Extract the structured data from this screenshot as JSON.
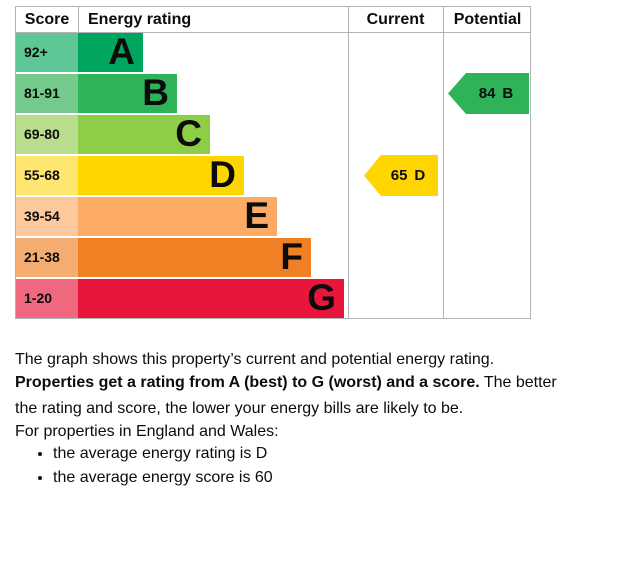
{
  "chart_data": {
    "type": "bar",
    "columns": {
      "score": "Score",
      "rating": "Energy rating",
      "current": "Current",
      "potential": "Potential"
    },
    "bands": [
      {
        "score_range": "92+",
        "letter": "A",
        "color": "#00a65d",
        "score_cell_color": "#5fc795"
      },
      {
        "score_range": "81-91",
        "letter": "B",
        "color": "#2eb358",
        "score_cell_color": "#74ca8c"
      },
      {
        "score_range": "69-80",
        "letter": "C",
        "color": "#8dce46",
        "score_cell_color": "#b8dd8d"
      },
      {
        "score_range": "55-68",
        "letter": "D",
        "color": "#ffd500",
        "score_cell_color": "#ffe671"
      },
      {
        "score_range": "39-54",
        "letter": "E",
        "color": "#fcaa65",
        "score_cell_color": "#fdc89b"
      },
      {
        "score_range": "21-38",
        "letter": "F",
        "color": "#ef8023",
        "score_cell_color": "#f4ac70"
      },
      {
        "score_range": "1-20",
        "letter": "G",
        "color": "#e9153b",
        "score_cell_color": "#f0687f"
      }
    ],
    "current": {
      "score": 65,
      "band": "D",
      "color": "#ffd500"
    },
    "potential": {
      "score": 84,
      "band": "B",
      "color": "#2eb358"
    },
    "grid_color": "#b1b4b6"
  },
  "description": {
    "intro": "The graph shows this property’s current and potential energy rating.",
    "rating_bold": "Properties get a rating from A (best) to G (worst) and a score.",
    "rating_rest_line1": "The better",
    "rating_rest_line2": "the rating and score, the lower your energy bills are likely to be.",
    "region_intro": "For properties in England and Wales:",
    "bullets": [
      "the average energy rating is D",
      "the average energy score is 60"
    ]
  }
}
